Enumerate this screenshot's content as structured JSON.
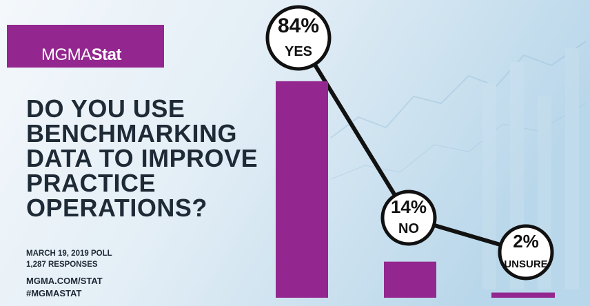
{
  "chart_data": {
    "type": "bar",
    "logo": {
      "light": "MGMA",
      "bold": "Stat"
    },
    "title": "DO YOU USE BENCHMARKING DATA TO IMPROVE PRACTICE OPERATIONS?",
    "categories": [
      "YES",
      "NO",
      "UNSURE"
    ],
    "values": [
      84,
      14,
      2
    ],
    "value_labels": [
      "84%",
      "14%",
      "2%"
    ],
    "color": "#93278f",
    "annotations": [
      "MARCH 19, 2019 POLL",
      "1,287 RESPONSES",
      "MGMA.COM/STAT",
      "#MGMASTAT"
    ]
  }
}
